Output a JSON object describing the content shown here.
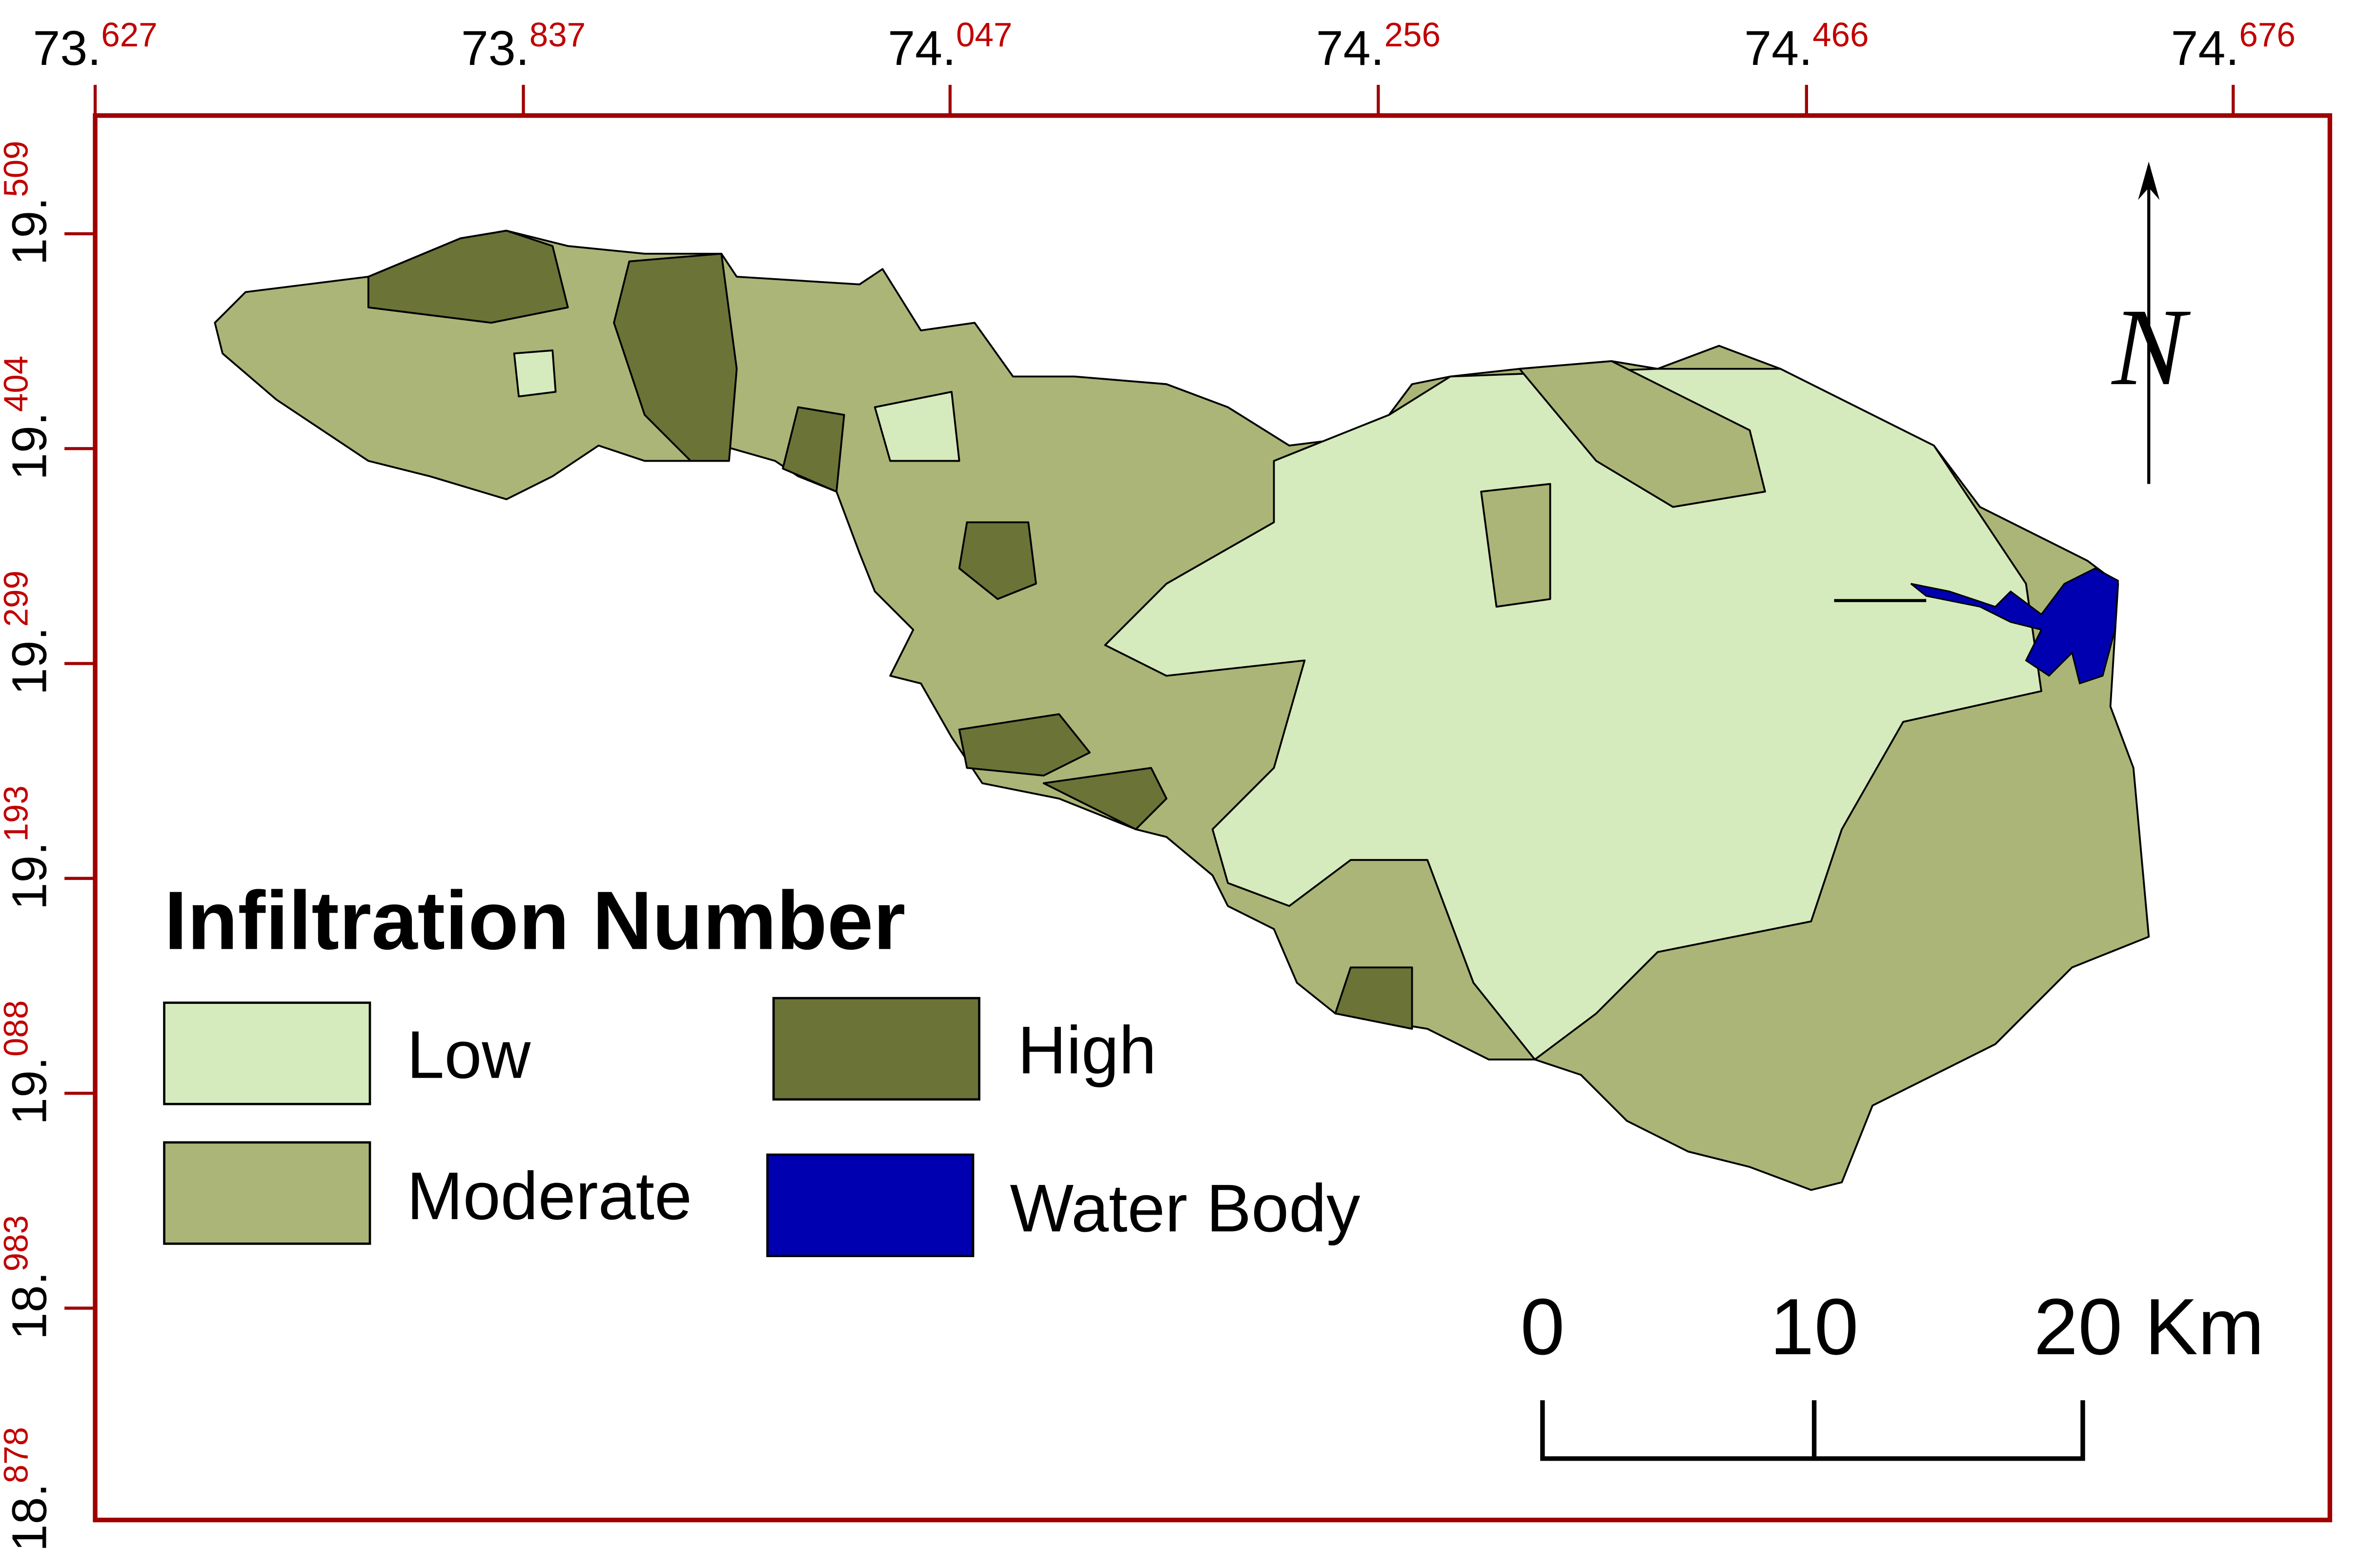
{
  "map": {
    "longitude_ticks": [
      {
        "degrees": "73.",
        "decimals": "627"
      },
      {
        "degrees": "73.",
        "decimals": "837"
      },
      {
        "degrees": "74.",
        "decimals": "047"
      },
      {
        "degrees": "74.",
        "decimals": "256"
      },
      {
        "degrees": "74.",
        "decimals": "466"
      },
      {
        "degrees": "74.",
        "decimals": "676"
      }
    ],
    "latitude_ticks": [
      {
        "degrees": "19.",
        "decimals": "509"
      },
      {
        "degrees": "19.",
        "decimals": "404"
      },
      {
        "degrees": "19.",
        "decimals": "299"
      },
      {
        "degrees": "19.",
        "decimals": "193"
      },
      {
        "degrees": "19.",
        "decimals": "088"
      },
      {
        "degrees": "18.",
        "decimals": "983"
      },
      {
        "degrees": "18.",
        "decimals": "878"
      }
    ],
    "legend": {
      "title": "Infiltration Number",
      "items": [
        {
          "label": "Low",
          "color": "#d6ebbd"
        },
        {
          "label": "High",
          "color": "#6b7337"
        },
        {
          "label": "Moderate",
          "color": "#abb577"
        },
        {
          "label": "Water Body",
          "color": "#0000b0"
        }
      ]
    },
    "north_arrow": "N",
    "scale_bar": [
      "0",
      "10",
      "20 Km"
    ]
  }
}
